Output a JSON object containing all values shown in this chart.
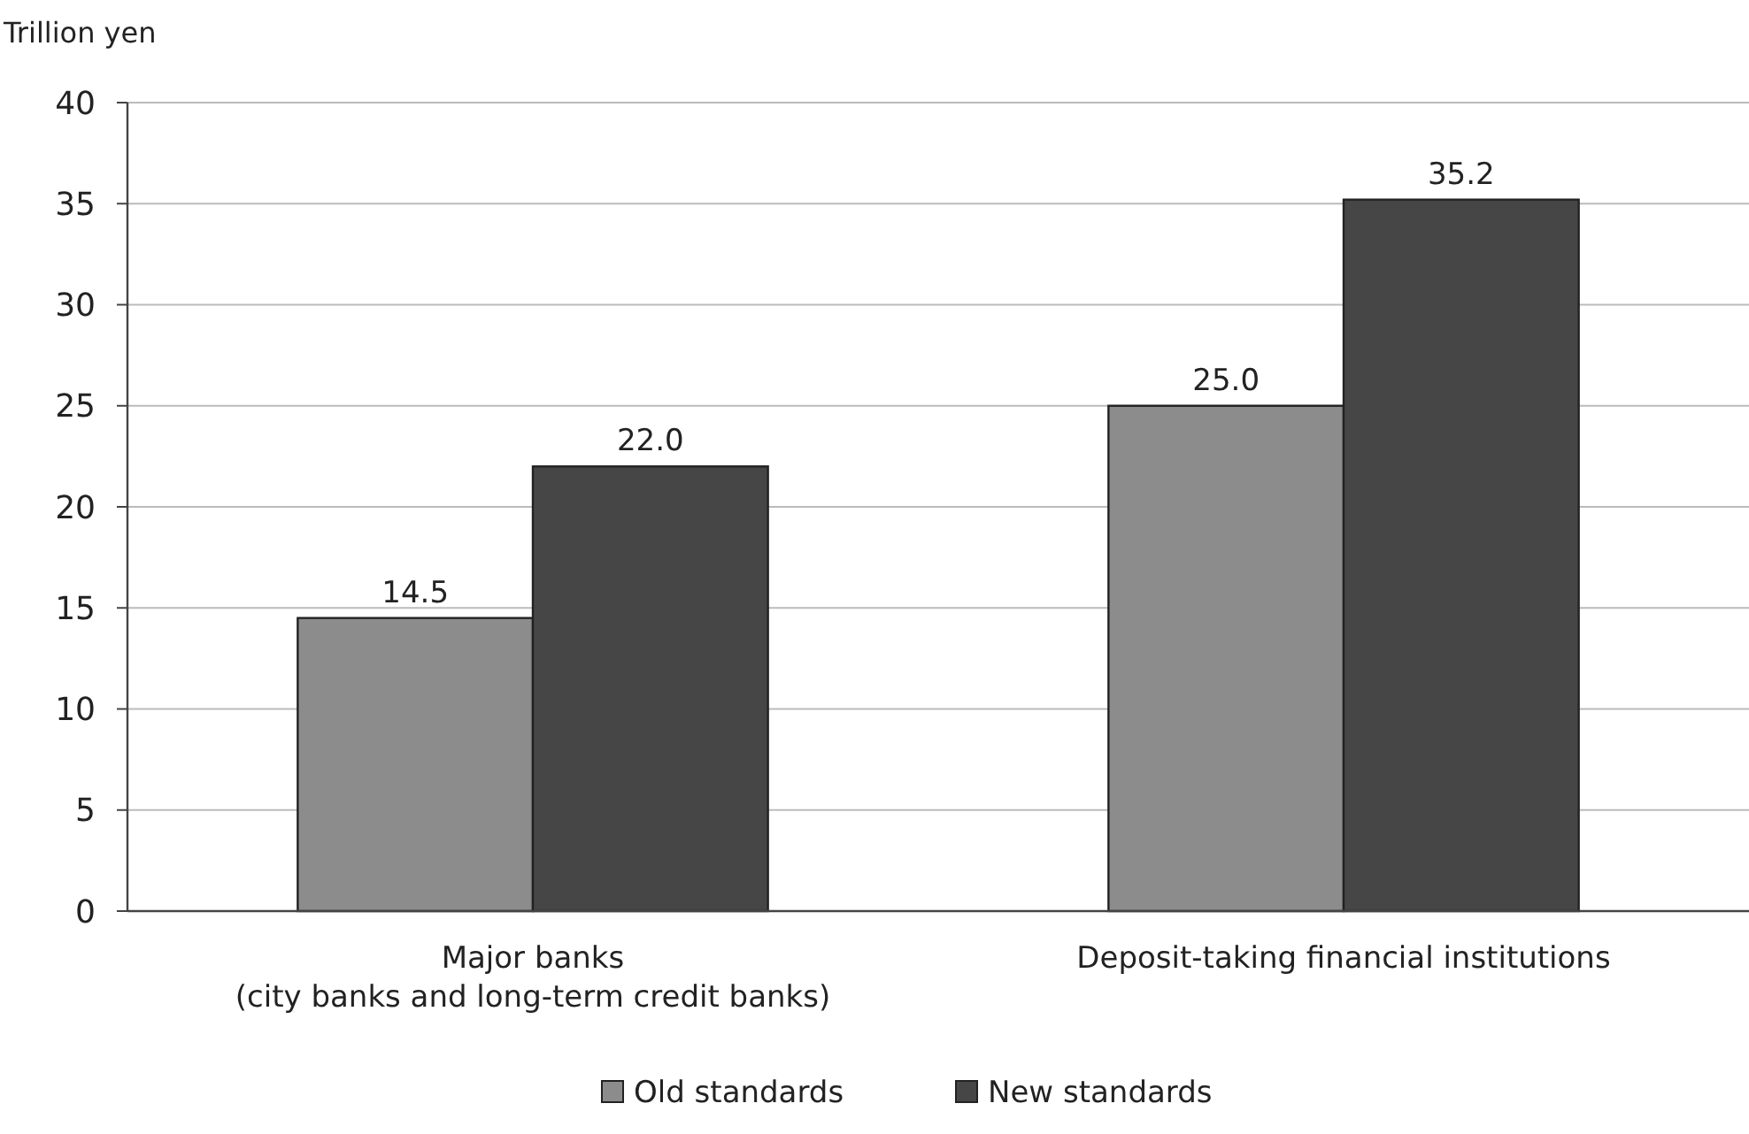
{
  "chart_data": {
    "type": "bar",
    "ylabel": "Trillion yen",
    "categories": [
      "Major banks\n(city banks and long-term credit banks)",
      "Deposit-taking financial institutions"
    ],
    "series": [
      {
        "name": "Old standards",
        "color": "#8c8c8c",
        "values": [
          14.5,
          25.0
        ],
        "value_labels": [
          "14.5",
          "25.0"
        ]
      },
      {
        "name": "New standards",
        "color": "#464646",
        "values": [
          22.0,
          35.2
        ],
        "value_labels": [
          "22.0",
          "35.2"
        ]
      }
    ],
    "ylim": [
      0,
      40
    ],
    "yticks": [
      0,
      5,
      10,
      15,
      20,
      25,
      30,
      35,
      40
    ],
    "grid": "y",
    "legend": "bottom"
  }
}
